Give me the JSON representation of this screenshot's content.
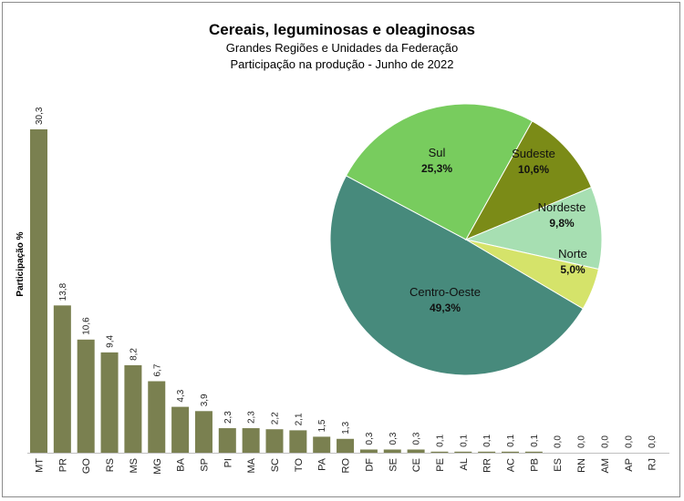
{
  "chart_data": [
    {
      "type": "bar",
      "title": "Cereais, leguminosas e oleaginosas",
      "subtitle": [
        "Grandes Regiões e Unidades da Federação",
        "Participação na produção - Junho de 2022"
      ],
      "ylabel": "Participação %",
      "xlabel": "",
      "ylim": [
        0,
        30.3
      ],
      "grid": false,
      "color": "#7a8050",
      "categories": [
        "MT",
        "PR",
        "GO",
        "RS",
        "MS",
        "MG",
        "BA",
        "SP",
        "PI",
        "MA",
        "SC",
        "TO",
        "PA",
        "RO",
        "DF",
        "SE",
        "CE",
        "PE",
        "AL",
        "RR",
        "AC",
        "PB",
        "ES",
        "RN",
        "AM",
        "AP",
        "RJ"
      ],
      "values": [
        30.3,
        13.8,
        10.6,
        9.4,
        8.2,
        6.7,
        4.3,
        3.9,
        2.3,
        2.3,
        2.2,
        2.1,
        1.5,
        1.3,
        0.3,
        0.3,
        0.3,
        0.1,
        0.1,
        0.1,
        0.1,
        0.1,
        0.0,
        0.0,
        0.0,
        0.0,
        0.0
      ],
      "value_labels": [
        "30,3",
        "13,8",
        "10,6",
        "9,4",
        "8,2",
        "6,7",
        "4,3",
        "3,9",
        "2,3",
        "2,3",
        "2,2",
        "2,1",
        "1,5",
        "1,3",
        "0,3",
        "0,3",
        "0,3",
        "0,1",
        "0,1",
        "0,1",
        "0,1",
        "0,1",
        "0,0",
        "0,0",
        "0,0",
        "0,0",
        "0,0"
      ]
    },
    {
      "type": "pie",
      "slices": [
        {
          "name": "Centro-Oeste",
          "value": 49.3,
          "label": "49,3%",
          "color": "#478a7c"
        },
        {
          "name": "Sul",
          "value": 25.3,
          "label": "25,3%",
          "color": "#78cc5e"
        },
        {
          "name": "Sudeste",
          "value": 10.6,
          "label": "10,6%",
          "color": "#7b8b17"
        },
        {
          "name": "Nordeste",
          "value": 9.8,
          "label": "9,8%",
          "color": "#a7dfb2"
        },
        {
          "name": "Norte",
          "value": 5.0,
          "label": "5,0%",
          "color": "#d5e36a"
        }
      ]
    }
  ]
}
